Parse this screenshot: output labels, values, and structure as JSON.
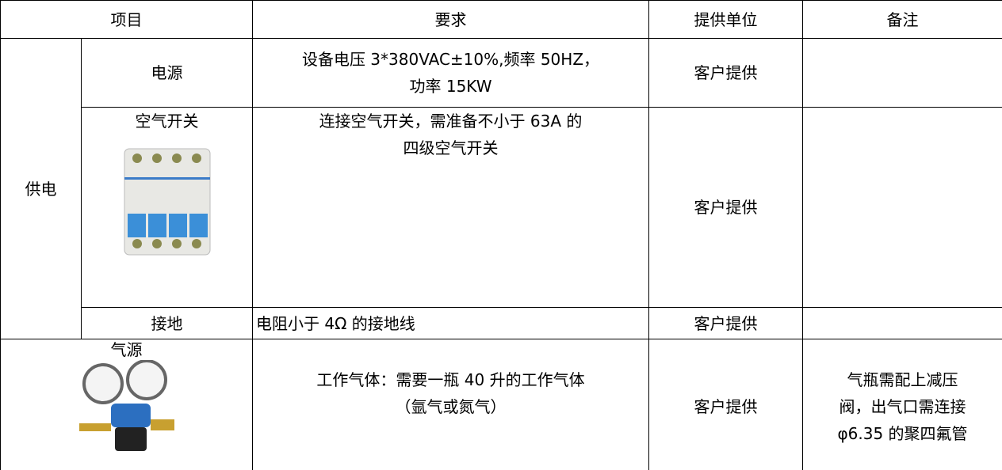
{
  "table": {
    "header": [
      "项目",
      "要求",
      "提供单位",
      "备注"
    ],
    "group": "供电",
    "rows": [
      {
        "item": "电源",
        "requirement": [
          "设备电压 3*380VAC±10%,频率 50HZ，",
          "功率 15KW"
        ],
        "provider": "客户提供"
      },
      {
        "item": "空气开关",
        "requirement": [
          "连接空气开关，需准备不小于 63A 的",
          "四级空气开关"
        ],
        "provider": "客户提供"
      },
      {
        "item": "接地",
        "requirement": [
          "电阻小于 4Ω 的接地线"
        ],
        "provider": "客户提供"
      },
      {
        "item": "气源",
        "requirement": [
          "工作气体：需要一瓶 40 升的工作气体",
          "（氩气或氮气）"
        ],
        "provider": "客户提供",
        "note": [
          "气瓶需配上减压",
          "阀，出气口需连接",
          "φ6.35 的聚四氟管"
        ]
      }
    ]
  }
}
